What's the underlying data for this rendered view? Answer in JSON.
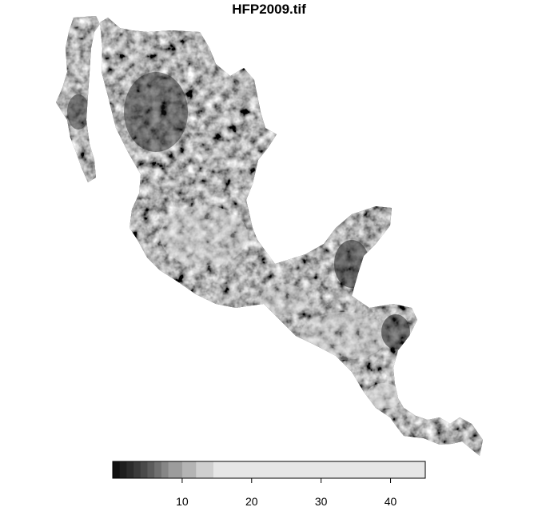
{
  "title": "HFP2009.tif",
  "map": {
    "type": "raster",
    "color_scale": "grayscale",
    "ramp_colors": [
      "#111111",
      "#1e1e1e",
      "#2b2b2b",
      "#3a3a3a",
      "#4a4a4a",
      "#5c5c5c",
      "#707070",
      "#868686",
      "#9c9c9c",
      "#b4b4b4",
      "#cfcfcf",
      "#e6e6e6"
    ]
  },
  "legend": {
    "min": 0,
    "max": 45,
    "breaks": [
      0,
      1,
      2,
      3,
      4,
      5,
      6,
      7,
      8,
      10,
      12,
      14.5,
      45
    ],
    "tick_values": [
      10,
      20,
      30,
      40
    ],
    "tick_labels": [
      "10",
      "20",
      "30",
      "40"
    ]
  }
}
